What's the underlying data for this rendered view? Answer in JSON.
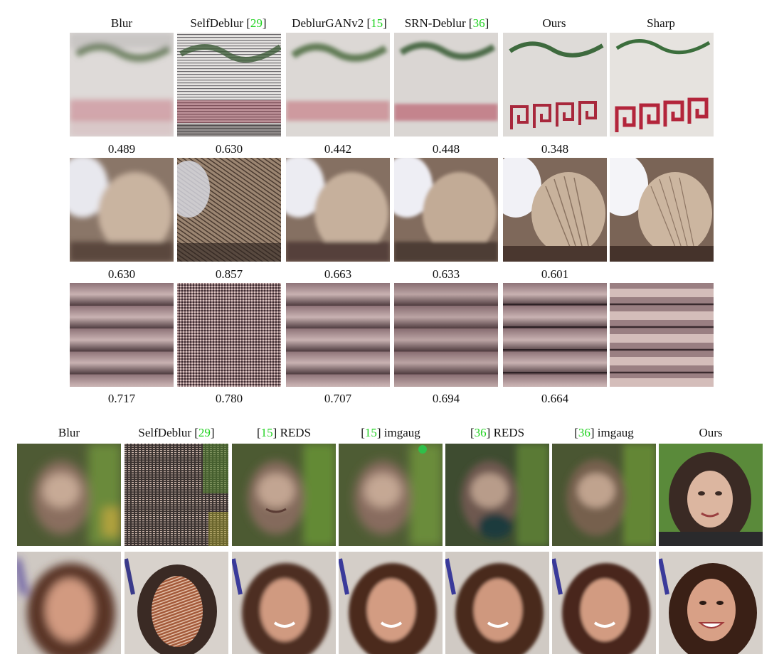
{
  "top_grid": {
    "headers": [
      {
        "name": "Blur",
        "ref": ""
      },
      {
        "name": "SelfDeblur",
        "ref": "29"
      },
      {
        "name": "DeblurGANv2",
        "ref": "15"
      },
      {
        "name": "SRN-Deblur",
        "ref": "36"
      },
      {
        "name": "Ours",
        "ref": ""
      },
      {
        "name": "Sharp",
        "ref": ""
      }
    ],
    "rows": [
      {
        "scene": "tile-wall",
        "scores": [
          "0.489",
          "0.630",
          "0.442",
          "0.448",
          "0.348"
        ]
      },
      {
        "scene": "seashell",
        "scores": [
          "0.630",
          "0.857",
          "0.663",
          "0.633",
          "0.601"
        ]
      },
      {
        "scene": "roof-tiles",
        "scores": [
          "0.717",
          "0.780",
          "0.707",
          "0.694",
          "0.664"
        ]
      }
    ]
  },
  "bottom_grid": {
    "headers": [
      {
        "prefix": "",
        "name": "Blur",
        "ref": ""
      },
      {
        "prefix": "",
        "name": "SelfDeblur",
        "ref": "29"
      },
      {
        "prefix": "15",
        "name": "REDS",
        "ref": ""
      },
      {
        "prefix": "15",
        "name": "imgaug",
        "ref": ""
      },
      {
        "prefix": "36",
        "name": "REDS",
        "ref": ""
      },
      {
        "prefix": "36",
        "name": "imgaug",
        "ref": ""
      },
      {
        "prefix": "",
        "name": "Ours",
        "ref": ""
      }
    ],
    "rows": [
      {
        "scene": "face-dark-hair"
      },
      {
        "scene": "face-smiling"
      }
    ]
  },
  "colors": {
    "reference_green": "#1fd21f",
    "text": "#111111"
  }
}
